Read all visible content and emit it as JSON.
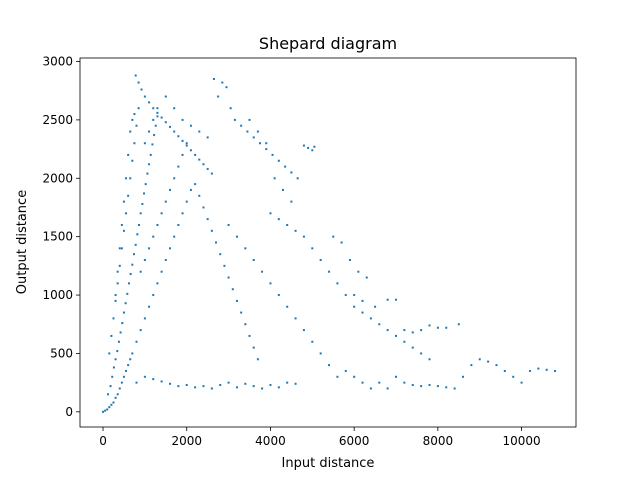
{
  "chart_data": {
    "type": "scatter",
    "title": "Shepard diagram",
    "xlabel": "Input distance",
    "ylabel": "Output distance",
    "xlim": [
      -550,
      11300
    ],
    "ylim": [
      -130,
      3030
    ],
    "xticks": [
      0,
      2000,
      4000,
      6000,
      8000,
      10000
    ],
    "yticks": [
      0,
      500,
      1000,
      1500,
      2000,
      2500,
      3000
    ],
    "grid": false,
    "legend": "none",
    "marker_color": "#1f77b4",
    "series": [
      {
        "points": [
          [
            0,
            0
          ],
          [
            50,
            10
          ],
          [
            100,
            20
          ],
          [
            150,
            40
          ],
          [
            200,
            60
          ],
          [
            250,
            80
          ],
          [
            300,
            120
          ],
          [
            350,
            150
          ],
          [
            400,
            200
          ],
          [
            450,
            250
          ],
          [
            500,
            300
          ],
          [
            550,
            350
          ],
          [
            600,
            400
          ],
          [
            650,
            450
          ],
          [
            700,
            500
          ],
          [
            120,
            150
          ],
          [
            180,
            220
          ],
          [
            220,
            300
          ],
          [
            260,
            380
          ],
          [
            300,
            450
          ],
          [
            340,
            520
          ],
          [
            380,
            600
          ],
          [
            420,
            680
          ],
          [
            460,
            760
          ],
          [
            500,
            850
          ],
          [
            540,
            930
          ],
          [
            580,
            1010
          ],
          [
            620,
            1100
          ],
          [
            660,
            1180
          ],
          [
            700,
            1260
          ],
          [
            740,
            1350
          ],
          [
            780,
            1430
          ],
          [
            820,
            1520
          ],
          [
            860,
            1600
          ],
          [
            900,
            1700
          ],
          [
            940,
            1780
          ],
          [
            980,
            1870
          ],
          [
            1020,
            1950
          ],
          [
            1060,
            2040
          ],
          [
            1100,
            2120
          ],
          [
            1140,
            2200
          ],
          [
            1180,
            2290
          ],
          [
            1220,
            2370
          ],
          [
            1260,
            2450
          ],
          [
            1300,
            2530
          ],
          [
            150,
            500
          ],
          [
            200,
            650
          ],
          [
            250,
            800
          ],
          [
            300,
            950
          ],
          [
            350,
            1100
          ],
          [
            400,
            1250
          ],
          [
            450,
            1400
          ],
          [
            500,
            1550
          ],
          [
            550,
            1700
          ],
          [
            600,
            1850
          ],
          [
            650,
            2000
          ],
          [
            700,
            2150
          ],
          [
            750,
            2300
          ],
          [
            800,
            2450
          ],
          [
            850,
            2600
          ],
          [
            780,
            2880
          ],
          [
            850,
            2820
          ],
          [
            920,
            2760
          ],
          [
            1000,
            2700
          ],
          [
            1100,
            2650
          ],
          [
            1200,
            2600
          ],
          [
            1300,
            2560
          ],
          [
            1400,
            2520
          ],
          [
            1500,
            2480
          ],
          [
            1600,
            2440
          ],
          [
            1700,
            2400
          ],
          [
            1800,
            2360
          ],
          [
            1900,
            2320
          ],
          [
            2000,
            2280
          ],
          [
            2100,
            2240
          ],
          [
            2200,
            2200
          ],
          [
            2300,
            2160
          ],
          [
            2400,
            2120
          ],
          [
            2500,
            2080
          ],
          [
            2600,
            2040
          ],
          [
            2650,
            2850
          ],
          [
            2750,
            2700
          ],
          [
            2850,
            2820
          ],
          [
            2950,
            2780
          ],
          [
            3050,
            2600
          ],
          [
            3150,
            2500
          ],
          [
            3300,
            2450
          ],
          [
            3450,
            2400
          ],
          [
            3600,
            2350
          ],
          [
            3750,
            2300
          ],
          [
            3900,
            2250
          ],
          [
            4050,
            2200
          ],
          [
            4200,
            2150
          ],
          [
            4350,
            2100
          ],
          [
            4500,
            2050
          ],
          [
            4650,
            2000
          ],
          [
            4800,
            2280
          ],
          [
            4900,
            2260
          ],
          [
            5000,
            2240
          ],
          [
            5050,
            2270
          ],
          [
            800,
            600
          ],
          [
            900,
            700
          ],
          [
            1000,
            800
          ],
          [
            1100,
            900
          ],
          [
            1200,
            1000
          ],
          [
            1300,
            1100
          ],
          [
            1400,
            1200
          ],
          [
            1500,
            1300
          ],
          [
            1600,
            1400
          ],
          [
            1700,
            1500
          ],
          [
            1800,
            1600
          ],
          [
            1900,
            1700
          ],
          [
            2000,
            1800
          ],
          [
            2100,
            1900
          ],
          [
            2200,
            1950
          ],
          [
            2300,
            1850
          ],
          [
            2400,
            1750
          ],
          [
            2500,
            1650
          ],
          [
            2600,
            1550
          ],
          [
            2700,
            1450
          ],
          [
            2800,
            1350
          ],
          [
            2900,
            1250
          ],
          [
            3000,
            1150
          ],
          [
            3100,
            1050
          ],
          [
            3200,
            950
          ],
          [
            3300,
            850
          ],
          [
            3400,
            750
          ],
          [
            3500,
            650
          ],
          [
            3600,
            550
          ],
          [
            3700,
            450
          ],
          [
            800,
            250
          ],
          [
            1000,
            300
          ],
          [
            1200,
            280
          ],
          [
            1400,
            260
          ],
          [
            1600,
            240
          ],
          [
            1800,
            220
          ],
          [
            2000,
            230
          ],
          [
            2200,
            210
          ],
          [
            2400,
            220
          ],
          [
            2600,
            200
          ],
          [
            2800,
            230
          ],
          [
            3000,
            250
          ],
          [
            3200,
            210
          ],
          [
            3400,
            240
          ],
          [
            3600,
            220
          ],
          [
            3800,
            200
          ],
          [
            4000,
            230
          ],
          [
            4200,
            210
          ],
          [
            4400,
            250
          ],
          [
            4600,
            240
          ],
          [
            3000,
            1600
          ],
          [
            3200,
            1500
          ],
          [
            3400,
            1400
          ],
          [
            3600,
            1300
          ],
          [
            3800,
            1200
          ],
          [
            4000,
            1100
          ],
          [
            4200,
            1000
          ],
          [
            4400,
            900
          ],
          [
            4600,
            800
          ],
          [
            4800,
            700
          ],
          [
            5000,
            600
          ],
          [
            5200,
            500
          ],
          [
            5400,
            400
          ],
          [
            5600,
            300
          ],
          [
            5800,
            350
          ],
          [
            6000,
            300
          ],
          [
            6200,
            250
          ],
          [
            6400,
            200
          ],
          [
            6600,
            250
          ],
          [
            6800,
            200
          ],
          [
            4000,
            1700
          ],
          [
            4200,
            1650
          ],
          [
            4400,
            1600
          ],
          [
            4600,
            1550
          ],
          [
            4800,
            1500
          ],
          [
            5000,
            1400
          ],
          [
            5200,
            1300
          ],
          [
            5400,
            1200
          ],
          [
            5600,
            1100
          ],
          [
            5800,
            1000
          ],
          [
            6000,
            900
          ],
          [
            6200,
            850
          ],
          [
            6400,
            800
          ],
          [
            6600,
            750
          ],
          [
            6800,
            700
          ],
          [
            7000,
            650
          ],
          [
            7200,
            600
          ],
          [
            7400,
            550
          ],
          [
            7600,
            500
          ],
          [
            7800,
            450
          ],
          [
            6000,
            1000
          ],
          [
            6200,
            950
          ],
          [
            6500,
            900
          ],
          [
            6800,
            960
          ],
          [
            7000,
            960
          ],
          [
            7200,
            700
          ],
          [
            7400,
            680
          ],
          [
            7600,
            700
          ],
          [
            7800,
            740
          ],
          [
            8000,
            720
          ],
          [
            8200,
            720
          ],
          [
            8500,
            750
          ],
          [
            7000,
            300
          ],
          [
            7200,
            250
          ],
          [
            7400,
            230
          ],
          [
            7600,
            220
          ],
          [
            7800,
            230
          ],
          [
            8000,
            220
          ],
          [
            8200,
            210
          ],
          [
            8400,
            200
          ],
          [
            8600,
            300
          ],
          [
            8800,
            400
          ],
          [
            9000,
            450
          ],
          [
            9200,
            430
          ],
          [
            9400,
            400
          ],
          [
            9600,
            350
          ],
          [
            9800,
            300
          ],
          [
            10000,
            250
          ],
          [
            10200,
            350
          ],
          [
            10400,
            370
          ],
          [
            10600,
            360
          ],
          [
            10800,
            350
          ],
          [
            5500,
            1500
          ],
          [
            5700,
            1450
          ],
          [
            5900,
            1300
          ],
          [
            6100,
            1200
          ],
          [
            6300,
            1150
          ],
          [
            3500,
            2500
          ],
          [
            3700,
            2400
          ],
          [
            3900,
            2300
          ],
          [
            4100,
            2000
          ],
          [
            4300,
            1900
          ],
          [
            4500,
            1800
          ],
          [
            300,
            1000
          ],
          [
            350,
            1200
          ],
          [
            400,
            1400
          ],
          [
            450,
            1600
          ],
          [
            500,
            1800
          ],
          [
            550,
            2000
          ],
          [
            600,
            2200
          ],
          [
            650,
            2400
          ],
          [
            700,
            2500
          ],
          [
            750,
            2550
          ],
          [
            1500,
            2700
          ],
          [
            1700,
            2600
          ],
          [
            1900,
            2500
          ],
          [
            2100,
            2450
          ],
          [
            2300,
            2400
          ],
          [
            2500,
            2350
          ],
          [
            1000,
            2300
          ],
          [
            1100,
            2400
          ],
          [
            1200,
            2500
          ],
          [
            1300,
            2600
          ],
          [
            900,
            1200
          ],
          [
            1000,
            1300
          ],
          [
            1100,
            1400
          ],
          [
            1200,
            1500
          ],
          [
            1300,
            1600
          ],
          [
            1400,
            1700
          ],
          [
            1500,
            1800
          ],
          [
            1600,
            1900
          ],
          [
            1700,
            2000
          ],
          [
            1800,
            2100
          ],
          [
            1900,
            2200
          ],
          [
            2000,
            2300
          ]
        ]
      }
    ]
  }
}
